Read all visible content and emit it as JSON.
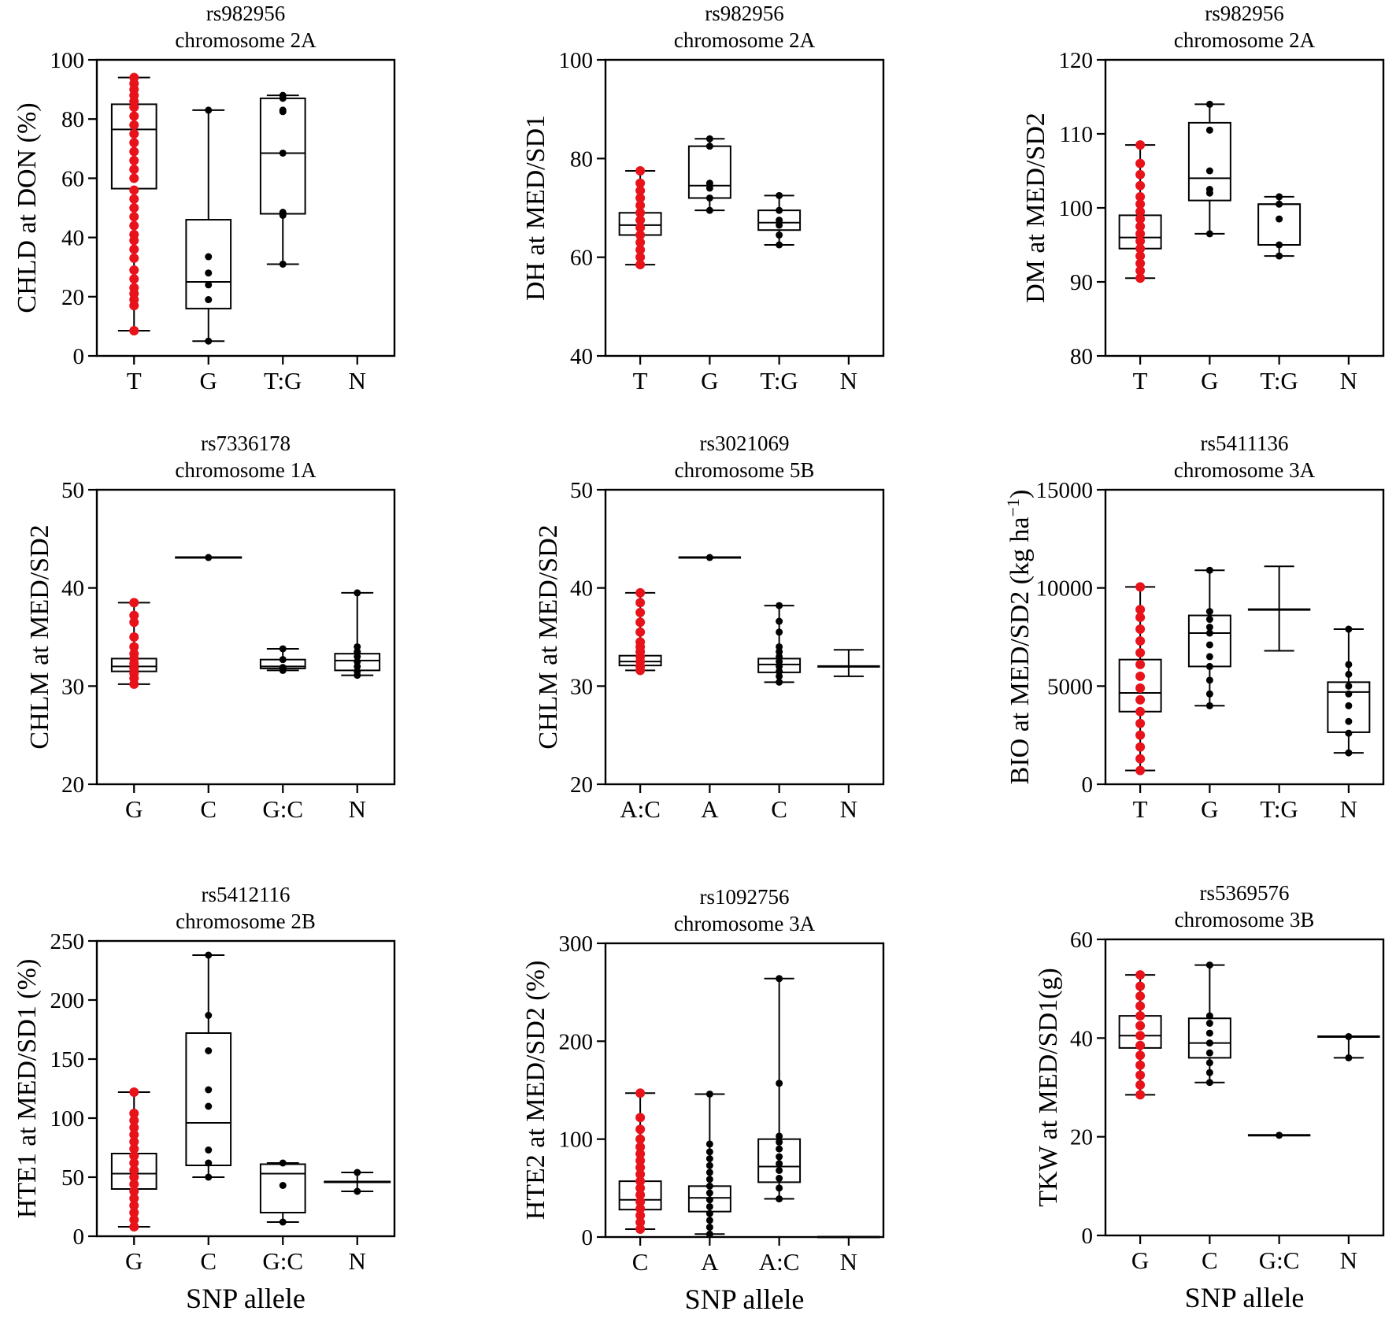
{
  "figure": {
    "x_label": "SNP allele"
  },
  "colors": {
    "highlight": "#e8121b",
    "default": "#000000"
  },
  "chart_data": [
    {
      "type": "box",
      "title": [
        "rs982956",
        "chromosome 2A"
      ],
      "ylabel": "CHLD at DON (%)",
      "ylim": [
        0,
        100
      ],
      "yticks": [
        0,
        20,
        40,
        60,
        80,
        100
      ],
      "categories": [
        "T",
        "G",
        "T:G",
        "N"
      ],
      "groups": [
        {
          "label": "T",
          "min": 8.5,
          "q1": 56.5,
          "median": 76.5,
          "q3": 85,
          "max": 94,
          "highlight": true,
          "points": [
            8.5,
            17,
            19,
            21,
            23,
            26,
            29,
            33,
            36,
            39,
            41,
            44,
            47,
            50,
            53,
            56,
            60,
            63,
            66,
            69,
            72,
            75,
            78,
            81,
            84,
            86,
            88,
            90,
            92,
            94
          ]
        },
        {
          "label": "G",
          "min": 5,
          "q1": 16,
          "median": 25,
          "q3": 46,
          "max": 83,
          "highlight": false,
          "points": [
            5,
            19,
            24,
            28,
            33.5,
            83
          ]
        },
        {
          "label": "T:G",
          "min": 31,
          "q1": 48,
          "median": 68.5,
          "q3": 87,
          "max": 88,
          "highlight": false,
          "points": [
            31,
            47.5,
            48.5,
            68.5,
            82.5,
            83,
            87,
            88
          ]
        },
        {
          "label": "N",
          "empty": true
        }
      ]
    },
    {
      "type": "box",
      "title": [
        "rs982956",
        "chromosome 2A"
      ],
      "ylabel": "DH at MED/SD1",
      "ylim": [
        40,
        100
      ],
      "yticks": [
        40,
        60,
        80,
        100
      ],
      "categories": [
        "T",
        "G",
        "T:G",
        "N"
      ],
      "groups": [
        {
          "label": "T",
          "min": 58.5,
          "q1": 64.5,
          "median": 66.5,
          "q3": 69,
          "max": 77.5,
          "highlight": true,
          "points": [
            58.5,
            60,
            61.5,
            63,
            64.5,
            66,
            67.5,
            69,
            70.5,
            72,
            73.5,
            75,
            77.5
          ]
        },
        {
          "label": "G",
          "min": 69.5,
          "q1": 72,
          "median": 74.5,
          "q3": 82.5,
          "max": 84,
          "highlight": false,
          "points": [
            69.5,
            72,
            74,
            75,
            82.5,
            84
          ]
        },
        {
          "label": "T:G",
          "min": 62.5,
          "q1": 65.5,
          "median": 67,
          "q3": 69.5,
          "max": 72.5,
          "highlight": false,
          "points": [
            62.5,
            64.5,
            66.5,
            67.5,
            69.5,
            72.5
          ]
        },
        {
          "label": "N",
          "empty": true
        }
      ]
    },
    {
      "type": "box",
      "title": [
        "rs982956",
        "chromosome 2A"
      ],
      "ylabel": "DM at MED/SD2",
      "ylim": [
        80,
        120
      ],
      "yticks": [
        80,
        90,
        100,
        110,
        120
      ],
      "categories": [
        "T",
        "G",
        "T:G",
        "N"
      ],
      "groups": [
        {
          "label": "T",
          "min": 90.5,
          "q1": 94.5,
          "median": 96,
          "q3": 99,
          "max": 108.5,
          "highlight": true,
          "points": [
            90.5,
            91.5,
            92.5,
            93.5,
            94.5,
            95.5,
            96.5,
            97.5,
            98.5,
            99.5,
            100.5,
            101.5,
            103,
            104.5,
            106,
            108.5
          ]
        },
        {
          "label": "G",
          "min": 96.5,
          "q1": 101,
          "median": 104,
          "q3": 111.5,
          "max": 114,
          "highlight": false,
          "points": [
            96.5,
            102,
            102.5,
            105,
            110.5,
            114
          ]
        },
        {
          "label": "T:G",
          "min": 93.5,
          "q1": 95,
          "median": 100.5,
          "q3": 100.5,
          "max": 101.5,
          "highlight": false,
          "points": [
            93.5,
            95,
            98.5,
            100.5,
            101.5
          ]
        },
        {
          "label": "N",
          "empty": true
        }
      ]
    },
    {
      "type": "box",
      "title": [
        "rs7336178",
        "chromosome 1A"
      ],
      "ylabel": "CHLM at MED/SD2",
      "ylim": [
        20,
        50
      ],
      "yticks": [
        20,
        30,
        40,
        50
      ],
      "categories": [
        "G",
        "C",
        "G:C",
        "N"
      ],
      "groups": [
        {
          "label": "G",
          "min": 30.2,
          "q1": 31.5,
          "median": 32,
          "q3": 32.8,
          "max": 38.5,
          "highlight": true,
          "points": [
            30.2,
            30.8,
            31.3,
            31.8,
            32.3,
            32.8,
            33.3,
            34,
            35,
            36.5,
            37.2,
            38.5
          ]
        },
        {
          "label": "C",
          "single": true,
          "min": 43.1,
          "q1": 43.1,
          "median": 43.1,
          "q3": 43.1,
          "max": 43.1,
          "highlight": false,
          "points": [
            43.1
          ]
        },
        {
          "label": "G:C",
          "min": 31.6,
          "q1": 31.8,
          "median": 32,
          "q3": 32.7,
          "max": 33.8,
          "highlight": false,
          "points": [
            31.6,
            31.9,
            32.7,
            33.8
          ]
        },
        {
          "label": "N",
          "min": 31.1,
          "q1": 31.6,
          "median": 32.6,
          "q3": 33.3,
          "max": 39.5,
          "highlight": false,
          "points": [
            31.1,
            31.5,
            32,
            32.5,
            33,
            33.5,
            34,
            39.5
          ]
        }
      ]
    },
    {
      "type": "box",
      "title": [
        "rs3021069",
        "chromosome 5B"
      ],
      "ylabel": "CHLM at MED/SD2",
      "ylim": [
        20,
        50
      ],
      "yticks": [
        20,
        30,
        40,
        50
      ],
      "categories": [
        "A:C",
        "A",
        "C",
        "N"
      ],
      "groups": [
        {
          "label": "A:C",
          "min": 31.6,
          "q1": 32.1,
          "median": 32.5,
          "q3": 33.1,
          "max": 39.5,
          "highlight": true,
          "points": [
            31.6,
            32,
            32.5,
            33,
            33.5,
            34,
            34.5,
            35.5,
            36.5,
            37.5,
            38.5,
            39.5
          ]
        },
        {
          "label": "A",
          "single": true,
          "min": 43.1,
          "q1": 43.1,
          "median": 43.1,
          "q3": 43.1,
          "max": 43.1,
          "highlight": false,
          "points": [
            43.1
          ]
        },
        {
          "label": "C",
          "min": 30.4,
          "q1": 31.4,
          "median": 32.2,
          "q3": 32.8,
          "max": 38.2,
          "highlight": false,
          "points": [
            30.4,
            31,
            31.5,
            32,
            32.5,
            33,
            33.5,
            34,
            35.5,
            36.6,
            38.2
          ]
        },
        {
          "label": "N",
          "nobox": true,
          "min": 31,
          "median": 32,
          "max": 33.7,
          "highlight": false,
          "points": []
        }
      ]
    },
    {
      "type": "box",
      "title": [
        "rs5411136",
        "chromosome 3A"
      ],
      "ylabel": "BIO at MED/SD2 (kg ha",
      "ylabel_sup": "−1",
      "ylabel_end": ")",
      "ylim": [
        0,
        15000
      ],
      "yticks": [
        0,
        5000,
        10000,
        15000
      ],
      "categories": [
        "T",
        "G",
        "T:G",
        "N"
      ],
      "groups": [
        {
          "label": "T",
          "min": 700,
          "q1": 3700,
          "median": 4650,
          "q3": 6350,
          "max": 10050,
          "highlight": true,
          "points": [
            700,
            1300,
            1900,
            2500,
            3100,
            3700,
            4300,
            4900,
            5500,
            6100,
            6700,
            7300,
            7900,
            8500,
            8900,
            10050
          ]
        },
        {
          "label": "G",
          "min": 4000,
          "q1": 6000,
          "median": 7700,
          "q3": 8600,
          "max": 10900,
          "highlight": false,
          "points": [
            4000,
            4600,
            5300,
            6000,
            6500,
            7100,
            7700,
            8000,
            8400,
            8800,
            10900
          ]
        },
        {
          "label": "T:G",
          "nobox": true,
          "min": 6800,
          "median": 8900,
          "max": 11100,
          "highlight": false,
          "points": []
        },
        {
          "label": "N",
          "min": 1600,
          "q1": 2650,
          "median": 4700,
          "q3": 5200,
          "max": 7900,
          "highlight": false,
          "points": [
            1600,
            2600,
            3200,
            4000,
            4600,
            5000,
            5600,
            6100,
            7900
          ]
        }
      ]
    },
    {
      "type": "box",
      "title": [
        "rs5412116",
        "chromosome 2B"
      ],
      "ylabel": "HTE1 at MED/SD1 (%)",
      "ylim": [
        0,
        250
      ],
      "yticks": [
        0,
        50,
        100,
        150,
        200,
        250
      ],
      "categories": [
        "G",
        "C",
        "G:C",
        "N"
      ],
      "groups": [
        {
          "label": "G",
          "min": 8,
          "q1": 40,
          "median": 53,
          "q3": 70,
          "max": 122,
          "highlight": true,
          "points": [
            8,
            14,
            20,
            26,
            32,
            38,
            44,
            50,
            56,
            62,
            68,
            74,
            80,
            86,
            92,
            98,
            104,
            122
          ]
        },
        {
          "label": "C",
          "min": 50,
          "q1": 60,
          "median": 96,
          "q3": 172,
          "max": 238,
          "highlight": false,
          "points": [
            50,
            62,
            73,
            110,
            124,
            157,
            187,
            238
          ]
        },
        {
          "label": "G:C",
          "min": 12,
          "q1": 20,
          "median": 53,
          "q3": 61,
          "max": 62,
          "highlight": false,
          "points": [
            12,
            43,
            62
          ]
        },
        {
          "label": "N",
          "nobox": true,
          "min": 38,
          "median": 46,
          "max": 54,
          "highlight": false,
          "points": [
            38,
            54
          ]
        }
      ]
    },
    {
      "type": "box",
      "title": [
        "rs1092756",
        "chromosome 3A"
      ],
      "ylabel": "HTE2 at MED/SD2 (%)",
      "ylim": [
        0,
        300
      ],
      "yticks": [
        0,
        100,
        200,
        300
      ],
      "categories": [
        "C",
        "A",
        "A:C",
        "N"
      ],
      "groups": [
        {
          "label": "C",
          "min": 8,
          "q1": 28,
          "median": 38,
          "q3": 57,
          "max": 147,
          "highlight": true,
          "points": [
            8,
            15,
            22,
            29,
            36,
            43,
            50,
            57,
            64,
            71,
            78,
            85,
            92,
            100,
            110,
            122,
            147
          ]
        },
        {
          "label": "A",
          "min": 3,
          "q1": 26,
          "median": 40,
          "q3": 52,
          "max": 146,
          "highlight": false,
          "points": [
            3,
            10,
            17,
            24,
            31,
            38,
            45,
            52,
            59,
            66,
            73,
            80,
            87,
            95,
            146
          ]
        },
        {
          "label": "A:C",
          "min": 39,
          "q1": 56,
          "median": 72,
          "q3": 100,
          "max": 264,
          "highlight": false,
          "points": [
            39,
            50,
            60,
            68,
            75,
            82,
            90,
            97,
            103,
            157,
            264
          ]
        },
        {
          "label": "N",
          "single": true,
          "min": 0,
          "q1": 0,
          "median": 0,
          "q3": 0,
          "max": 0,
          "highlight": false,
          "points": []
        }
      ]
    },
    {
      "type": "box",
      "title": [
        "rs5369576",
        "chromosome 3B"
      ],
      "ylabel": "TKW at MED/SD1(g)",
      "ylim": [
        0,
        60
      ],
      "yticks": [
        0,
        20,
        40,
        60
      ],
      "categories": [
        "G",
        "C",
        "G:C",
        "N"
      ],
      "groups": [
        {
          "label": "G",
          "min": 28.5,
          "q1": 38,
          "median": 40.5,
          "q3": 44.5,
          "max": 52.8,
          "highlight": true,
          "points": [
            28.5,
            30.5,
            32.5,
            34.5,
            36.5,
            38.5,
            40.5,
            42.5,
            44.5,
            46.5,
            48.5,
            50.5,
            52.8
          ]
        },
        {
          "label": "C",
          "min": 31,
          "q1": 36,
          "median": 39,
          "q3": 44,
          "max": 54.8,
          "highlight": false,
          "points": [
            31,
            33,
            35,
            37,
            39,
            41,
            43,
            44.5,
            54.8
          ]
        },
        {
          "label": "G:C",
          "single": true,
          "min": 20.3,
          "q1": 20.3,
          "median": 20.3,
          "q3": 20.3,
          "max": 20.3,
          "highlight": false,
          "points": [
            20.3
          ]
        },
        {
          "label": "N",
          "nobox": true,
          "min": 36,
          "median": 40.3,
          "max": 40.3,
          "highlight": false,
          "points": [
            36,
            40.3
          ]
        }
      ]
    }
  ]
}
